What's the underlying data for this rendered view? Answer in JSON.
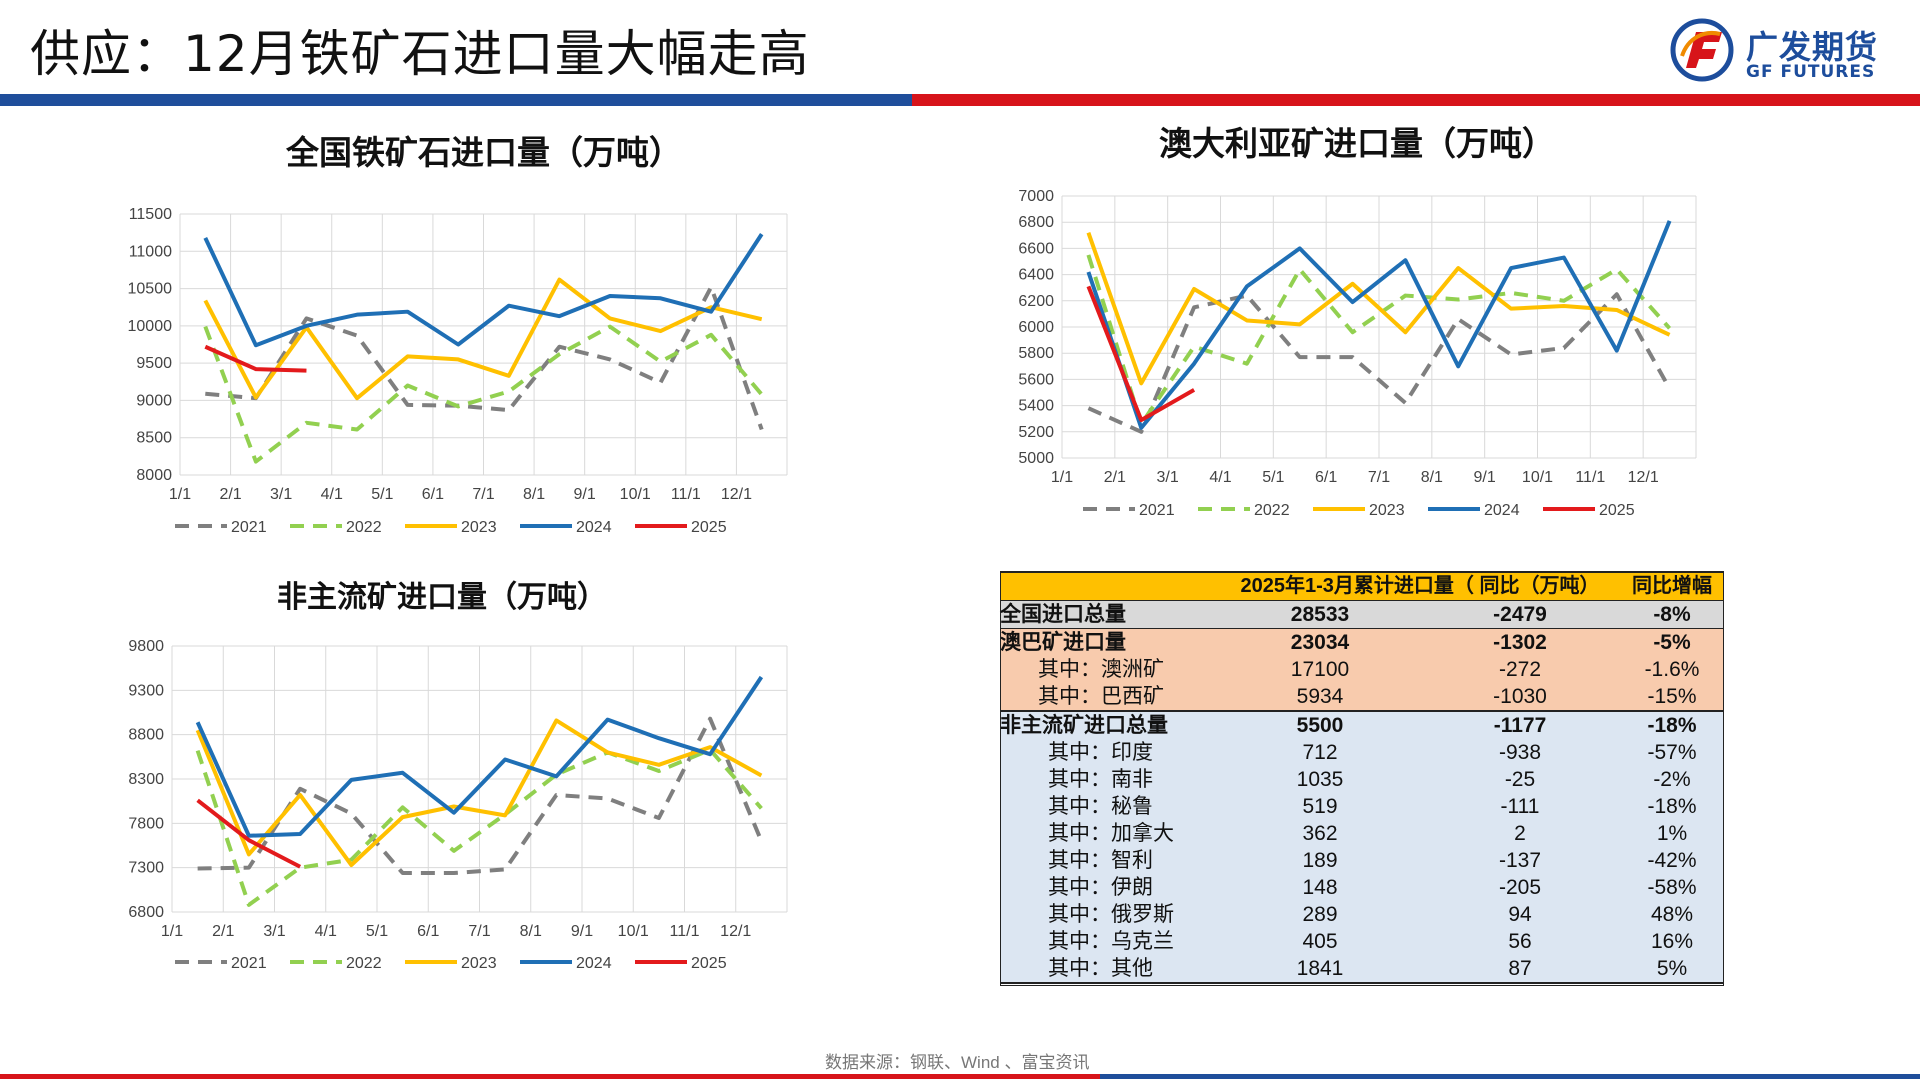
{
  "page": {
    "title": "供应：12月铁矿石进口量大幅走高",
    "source": "数据来源：钢联、Wind 、富宝资讯"
  },
  "logo": {
    "cn": "广发期货",
    "en": "GF FUTURES",
    "colors": {
      "blue": "#1d4d9c",
      "orange": "#f08a00",
      "red": "#d7141a"
    }
  },
  "colors": {
    "2021": "#7f7f7f",
    "2022": "#92d050",
    "2023": "#ffc000",
    "2024": "#1f6fb5",
    "2025": "#e31a1c",
    "grid": "#d9d9d9",
    "band_blue": "#1f4e9b",
    "band_red": "#d7141a"
  },
  "chart_data": [
    {
      "id": "national",
      "type": "line",
      "title": "全国铁矿石进口量（万吨）",
      "x_labels": [
        "1/1",
        "2/1",
        "3/1",
        "4/1",
        "5/1",
        "6/1",
        "7/1",
        "8/1",
        "9/1",
        "10/1",
        "11/1",
        "12/1"
      ],
      "y_ticks": [
        8000,
        8500,
        9000,
        9500,
        10000,
        10500,
        11000,
        11500
      ],
      "ylim": [
        8000,
        11500
      ],
      "grid": true,
      "legend": "bottom",
      "series": [
        {
          "name": "2021",
          "style": "dashed",
          "values": [
            9090,
            9030,
            10100,
            9870,
            8940,
            8930,
            8870,
            9720,
            9550,
            9240,
            10520,
            8610
          ]
        },
        {
          "name": "2022",
          "style": "dashed",
          "values": [
            9990,
            8180,
            8700,
            8610,
            9200,
            8920,
            9120,
            9620,
            9990,
            9520,
            9880,
            9080
          ]
        },
        {
          "name": "2023",
          "style": "solid",
          "values": [
            10340,
            9040,
            9980,
            9030,
            9590,
            9550,
            9330,
            10620,
            10100,
            9930,
            10250,
            10090
          ]
        },
        {
          "name": "2024",
          "style": "solid",
          "values": [
            11180,
            9740,
            10000,
            10150,
            10190,
            9750,
            10270,
            10130,
            10400,
            10370,
            10190,
            11230
          ]
        },
        {
          "name": "2025",
          "style": "solid",
          "values": [
            9720,
            9420,
            9400
          ]
        }
      ]
    },
    {
      "id": "australia",
      "type": "line",
      "title": "澳大利亚矿进口量（万吨）",
      "x_labels": [
        "1/1",
        "2/1",
        "3/1",
        "4/1",
        "5/1",
        "6/1",
        "7/1",
        "8/1",
        "9/1",
        "10/1",
        "11/1",
        "12/1"
      ],
      "y_ticks": [
        5000,
        5200,
        5400,
        5600,
        5800,
        6000,
        6200,
        6400,
        6600,
        6800,
        7000
      ],
      "ylim": [
        5000,
        7000
      ],
      "grid": true,
      "legend": "bottom",
      "series": [
        {
          "name": "2021",
          "style": "dashed",
          "values": [
            5380,
            5200,
            6150,
            6240,
            5770,
            5770,
            5420,
            6060,
            5790,
            5840,
            6250,
            5530
          ]
        },
        {
          "name": "2022",
          "style": "dashed",
          "values": [
            6550,
            5260,
            5850,
            5720,
            6440,
            5960,
            6240,
            6210,
            6260,
            6200,
            6440,
            5990
          ]
        },
        {
          "name": "2023",
          "style": "solid",
          "values": [
            6720,
            5570,
            6290,
            6050,
            6020,
            6330,
            5960,
            6450,
            6140,
            6160,
            6130,
            5940
          ]
        },
        {
          "name": "2024",
          "style": "solid",
          "values": [
            6420,
            5230,
            5720,
            6310,
            6600,
            6190,
            6510,
            5700,
            6450,
            6530,
            5820,
            6810
          ]
        },
        {
          "name": "2025",
          "style": "solid",
          "values": [
            6310,
            5290,
            5520
          ]
        }
      ]
    },
    {
      "id": "nonmainstream",
      "type": "line",
      "title": "非主流矿进口量（万吨）",
      "x_labels": [
        "1/1",
        "2/1",
        "3/1",
        "4/1",
        "5/1",
        "6/1",
        "7/1",
        "8/1",
        "9/1",
        "10/1",
        "11/1",
        "12/1"
      ],
      "y_ticks": [
        6800,
        7300,
        7800,
        8300,
        8800,
        9300,
        9800
      ],
      "ylim": [
        6800,
        9800
      ],
      "grid": true,
      "legend": "bottom",
      "series": [
        {
          "name": "2021",
          "style": "dashed",
          "values": [
            7290,
            7300,
            8190,
            7910,
            7240,
            7240,
            7280,
            8120,
            8080,
            7860,
            8980,
            7600
          ]
        },
        {
          "name": "2022",
          "style": "dashed",
          "values": [
            8620,
            6880,
            7300,
            7390,
            7980,
            7490,
            7900,
            8350,
            8600,
            8390,
            8630,
            7970
          ]
        },
        {
          "name": "2023",
          "style": "solid",
          "values": [
            8850,
            7450,
            8120,
            7330,
            7870,
            7990,
            7890,
            8960,
            8600,
            8460,
            8660,
            8340
          ]
        },
        {
          "name": "2024",
          "style": "solid",
          "values": [
            8940,
            7660,
            7680,
            8290,
            8370,
            7920,
            8520,
            8330,
            8970,
            8760,
            8580,
            9450
          ]
        },
        {
          "name": "2025",
          "style": "solid",
          "values": [
            8060,
            7610,
            7310
          ]
        }
      ]
    }
  ],
  "table": {
    "header": {
      "col1": "",
      "col2": "2025年1-3月累计进口量（ 同比（万吨）",
      "col3": "同比增幅"
    },
    "rows": [
      {
        "group": "total",
        "name": "全国进口总量",
        "value": "28533",
        "yoy": "-2479",
        "pct": "-8%"
      },
      {
        "group": "ab-main",
        "name": "澳巴矿进口量",
        "value": "23034",
        "yoy": "-1302",
        "pct": "-5%"
      },
      {
        "group": "ab",
        "name": "其中：澳洲矿",
        "value": "17100",
        "yoy": "-272",
        "pct": "-1.6%"
      },
      {
        "group": "ab",
        "name": "其中：巴西矿",
        "value": "5934",
        "yoy": "-1030",
        "pct": "-15%"
      },
      {
        "group": "nm-main",
        "name": "非主流矿进口总量",
        "value": "5500",
        "yoy": "-1177",
        "pct": "-18%"
      },
      {
        "group": "nm",
        "name": "其中：印度",
        "value": "712",
        "yoy": "-938",
        "pct": "-57%"
      },
      {
        "group": "nm",
        "name": "其中：南非",
        "value": "1035",
        "yoy": "-25",
        "pct": "-2%"
      },
      {
        "group": "nm",
        "name": "其中：秘鲁",
        "value": "519",
        "yoy": "-111",
        "pct": "-18%"
      },
      {
        "group": "nm",
        "name": "其中：加拿大",
        "value": "362",
        "yoy": "2",
        "pct": "1%"
      },
      {
        "group": "nm",
        "name": "其中：智利",
        "value": "189",
        "yoy": "-137",
        "pct": "-42%"
      },
      {
        "group": "nm",
        "name": "其中：伊朗",
        "value": "148",
        "yoy": "-205",
        "pct": "-58%"
      },
      {
        "group": "nm",
        "name": "其中：俄罗斯",
        "value": "289",
        "yoy": "94",
        "pct": "48%"
      },
      {
        "group": "nm",
        "name": "其中：乌克兰",
        "value": "405",
        "yoy": "56",
        "pct": "16%"
      },
      {
        "group": "nm",
        "name": "其中：其他",
        "value": "1841",
        "yoy": "87",
        "pct": "5%"
      }
    ]
  }
}
